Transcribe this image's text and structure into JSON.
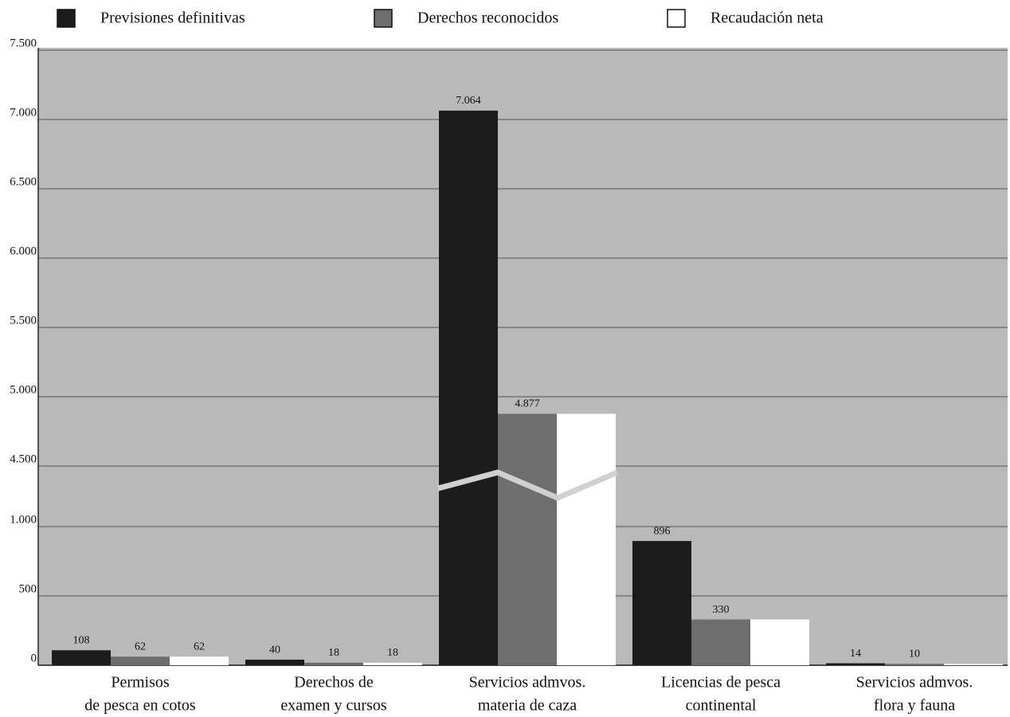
{
  "chart_data": {
    "type": "bar",
    "categories": [
      [
        "Permisos",
        "de pesca en cotos"
      ],
      [
        "Derechos de",
        "examen y cursos"
      ],
      [
        "Servicios admvos.",
        "materia de caza"
      ],
      [
        "Licencias de pesca",
        "continental"
      ],
      [
        "Servicios admvos.",
        "flora y fauna"
      ]
    ],
    "series": [
      {
        "name": "Previsiones definitivas",
        "color": "#1c1c1c",
        "values": [
          108,
          40,
          7064,
          896,
          14
        ],
        "value_labels": [
          "108",
          "40",
          "7.064",
          "896",
          "14"
        ]
      },
      {
        "name": "Derechos reconocidos",
        "color": "#6e6e6e",
        "values": [
          62,
          18,
          4877,
          330,
          10
        ],
        "value_labels": [
          "62",
          "18",
          "4.877",
          "330",
          "10"
        ]
      },
      {
        "name": "Recaudación neta",
        "color": "#ffffff",
        "values": [
          62,
          18,
          4877,
          330,
          10
        ],
        "value_labels": [
          "62",
          "18",
          null,
          null,
          null
        ]
      }
    ],
    "ylim": [
      0,
      7500
    ],
    "axis_break": [
      1000,
      4500
    ],
    "yticks": [
      0,
      500,
      {
        "value": 1000,
        "label": "1.000"
      },
      {
        "value": 4500,
        "label": "4.500"
      },
      {
        "value": 5000,
        "label": "5.000"
      },
      {
        "value": 5500,
        "label": "5.500"
      },
      {
        "value": 6000,
        "label": "6.000"
      },
      {
        "value": 6500,
        "label": "6.500"
      },
      {
        "value": 7000,
        "label": "7.000"
      },
      {
        "value": 7500,
        "label": "7.500"
      }
    ],
    "grid": true
  }
}
